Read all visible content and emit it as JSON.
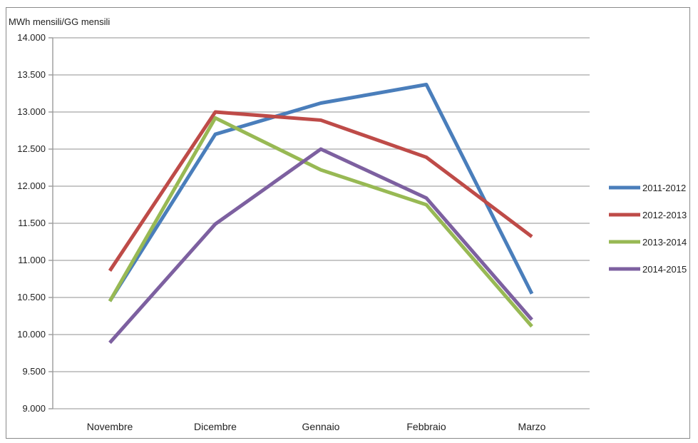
{
  "chart_data": {
    "type": "line",
    "title": "",
    "ylabel": "MWh mensili/GG mensili",
    "xlabel": "",
    "categories": [
      "Novembre",
      "Dicembre",
      "Gennaio",
      "Febbraio",
      "Marzo"
    ],
    "ylim": [
      9000,
      14000
    ],
    "yticks": [
      9000,
      9500,
      10000,
      10500,
      11000,
      11500,
      12000,
      12500,
      13000,
      13500,
      14000
    ],
    "ytick_labels": [
      "9.000",
      "9.500",
      "10.000",
      "10.500",
      "11.000",
      "11.500",
      "12.000",
      "12.500",
      "13.000",
      "13.500",
      "14.000"
    ],
    "grid": true,
    "legend": "right",
    "series": [
      {
        "name": "2011-2012",
        "color": "#4a7ebb",
        "values": [
          10450,
          12700,
          13120,
          13370,
          10550
        ]
      },
      {
        "name": "2012-2013",
        "color": "#be4b48",
        "values": [
          10860,
          13000,
          12890,
          12390,
          11320
        ]
      },
      {
        "name": "2013-2014",
        "color": "#98b954",
        "values": [
          10450,
          12920,
          12220,
          11750,
          10110
        ]
      },
      {
        "name": "2014-2015",
        "color": "#7d60a0",
        "values": [
          9890,
          11490,
          12500,
          11840,
          10200
        ]
      }
    ]
  }
}
